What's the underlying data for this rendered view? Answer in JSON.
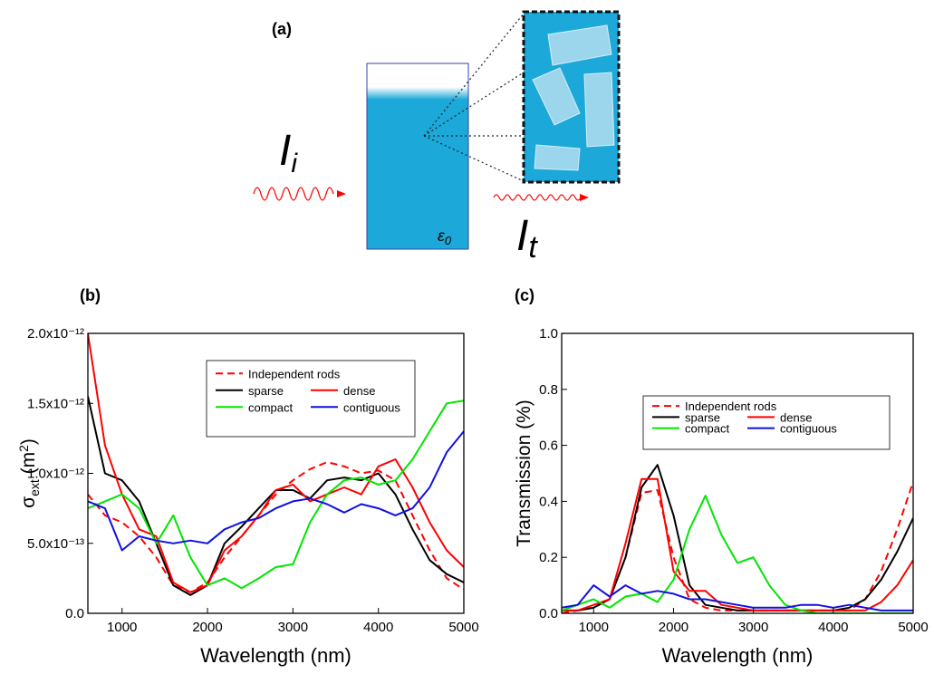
{
  "diagram": {
    "panel_label": "(a)",
    "incident_symbol": "I",
    "incident_sub": "i",
    "transmitted_symbol": "I",
    "transmitted_sub": "t",
    "medium_symbol": "ε",
    "medium_sub": "0"
  },
  "chart_data": [
    {
      "type": "line",
      "panel_label": "(b)",
      "x_label": "Wavelength (nm)",
      "y_label": [
        "σ",
        "ext",
        " (m",
        "2",
        ")"
      ],
      "x": [
        600,
        800,
        1000,
        1200,
        1400,
        1600,
        1800,
        2000,
        2200,
        2400,
        2600,
        2800,
        3000,
        3200,
        3400,
        3600,
        3800,
        4000,
        4200,
        4400,
        4600,
        4800,
        5000
      ],
      "xlim": [
        600,
        5000
      ],
      "xticks": [
        1000,
        2000,
        3000,
        4000,
        5000
      ],
      "ylim": [
        0,
        2e-12
      ],
      "yticks": [
        {
          "value": 0,
          "label": "0.0"
        },
        {
          "value": 5e-13,
          "label": "5.0x10⁻¹³"
        },
        {
          "value": 1e-12,
          "label": "1.0x10⁻¹²"
        },
        {
          "value": 1.5e-12,
          "label": "1.5x10⁻¹²"
        },
        {
          "value": 2e-12,
          "label": "2.0x10⁻¹²"
        }
      ],
      "series": [
        {
          "name": "Independent rods",
          "color": "#ff0000",
          "dashed": true,
          "values": [
            8.5e-13,
            7e-13,
            6.5e-13,
            5.5e-13,
            4e-13,
            2e-13,
            1.5e-13,
            2.2e-13,
            4e-13,
            5.5e-13,
            7e-13,
            8.5e-13,
            9.5e-13,
            1.03e-12,
            1.08e-12,
            1.05e-12,
            1e-12,
            1.02e-12,
            9.5e-13,
            7e-13,
            4.5e-13,
            2.5e-13,
            1.7e-13
          ]
        },
        {
          "name": "sparse",
          "color": "#000000",
          "values": [
            1.55e-12,
            1e-12,
            9.5e-13,
            8e-13,
            5e-13,
            2e-13,
            1.3e-13,
            2e-13,
            5e-13,
            6.2e-13,
            7.5e-13,
            8.8e-13,
            8.8e-13,
            8.2e-13,
            9.5e-13,
            9.7e-13,
            9.5e-13,
            1e-12,
            8.5e-13,
            6e-13,
            3.8e-13,
            2.8e-13,
            2.2e-13
          ]
        },
        {
          "name": "dense",
          "color": "#ff0000",
          "values": [
            2e-12,
            1.2e-12,
            8.5e-13,
            6e-13,
            5.5e-13,
            2.2e-13,
            1.5e-13,
            2e-13,
            4.5e-13,
            5.5e-13,
            7e-13,
            8.8e-13,
            9.2e-13,
            8e-13,
            8.5e-13,
            9e-13,
            8.5e-13,
            1.05e-12,
            1.1e-12,
            9e-13,
            6.5e-13,
            4.5e-13,
            3.3e-13
          ]
        },
        {
          "name": "compact",
          "color": "#00e600",
          "values": [
            7.5e-13,
            8e-13,
            8.5e-13,
            7.5e-13,
            5e-13,
            7e-13,
            4e-13,
            2e-13,
            2.5e-13,
            1.8e-13,
            2.5e-13,
            3.3e-13,
            3.5e-13,
            6.5e-13,
            8.5e-13,
            9.5e-13,
            9.7e-13,
            9.2e-13,
            9.5e-13,
            1.1e-12,
            1.3e-12,
            1.5e-12,
            1.52e-12
          ]
        },
        {
          "name": "contiguous",
          "color": "#1010e0",
          "values": [
            8e-13,
            7.5e-13,
            4.5e-13,
            5.5e-13,
            5.2e-13,
            5e-13,
            5.2e-13,
            5e-13,
            6e-13,
            6.5e-13,
            6.8e-13,
            7.5e-13,
            8e-13,
            8.2e-13,
            7.8e-13,
            7.2e-13,
            7.8e-13,
            7.5e-13,
            7e-13,
            7.5e-13,
            9e-13,
            1.15e-12,
            1.3e-12
          ]
        }
      ]
    },
    {
      "type": "line",
      "panel_label": "(c)",
      "x_label": "Wavelength (nm)",
      "y_label": [
        "Transmission (%)"
      ],
      "x": [
        600,
        800,
        1000,
        1200,
        1400,
        1600,
        1800,
        2000,
        2200,
        2400,
        2600,
        2800,
        3000,
        3200,
        3400,
        3600,
        3800,
        4000,
        4200,
        4400,
        4600,
        4800,
        5000
      ],
      "xlim": [
        600,
        5000
      ],
      "xticks": [
        1000,
        2000,
        3000,
        4000,
        5000
      ],
      "ylim": [
        0,
        1
      ],
      "yticks": [
        {
          "value": 0,
          "label": "0.0"
        },
        0.2,
        0.4,
        0.6,
        0.8,
        {
          "value": 1,
          "label": "1.0"
        }
      ],
      "series": [
        {
          "name": "Independent rods",
          "color": "#ff0000",
          "dashed": true,
          "values": [
            0,
            0.01,
            0.02,
            0.05,
            0.2,
            0.43,
            0.44,
            0.2,
            0.05,
            0.02,
            0.01,
            0.01,
            0.01,
            0.01,
            0.01,
            0.01,
            0.01,
            0.01,
            0.01,
            0.05,
            0.15,
            0.3,
            0.47
          ]
        },
        {
          "name": "sparse",
          "color": "#000000",
          "values": [
            0.01,
            0.01,
            0.02,
            0.05,
            0.2,
            0.45,
            0.53,
            0.35,
            0.1,
            0.03,
            0.02,
            0.01,
            0.01,
            0.01,
            0.01,
            0.01,
            0.01,
            0.01,
            0.02,
            0.05,
            0.12,
            0.22,
            0.34
          ]
        },
        {
          "name": "dense",
          "color": "#ff0000",
          "values": [
            0.01,
            0.01,
            0.03,
            0.05,
            0.25,
            0.48,
            0.48,
            0.15,
            0.08,
            0.08,
            0.03,
            0.02,
            0.01,
            0.01,
            0.01,
            0.01,
            0.01,
            0.01,
            0.01,
            0.01,
            0.04,
            0.1,
            0.19
          ]
        },
        {
          "name": "compact",
          "color": "#00e600",
          "values": [
            0.01,
            0.03,
            0.05,
            0.02,
            0.06,
            0.07,
            0.04,
            0.12,
            0.3,
            0.42,
            0.28,
            0.18,
            0.2,
            0.1,
            0.03,
            0.01,
            0,
            0,
            0,
            0,
            0,
            0,
            0
          ]
        },
        {
          "name": "contiguous",
          "color": "#1010e0",
          "values": [
            0.02,
            0.03,
            0.1,
            0.06,
            0.1,
            0.07,
            0.08,
            0.07,
            0.05,
            0.05,
            0.04,
            0.03,
            0.02,
            0.02,
            0.02,
            0.03,
            0.03,
            0.02,
            0.03,
            0.02,
            0.01,
            0.01,
            0.01
          ]
        }
      ]
    }
  ]
}
